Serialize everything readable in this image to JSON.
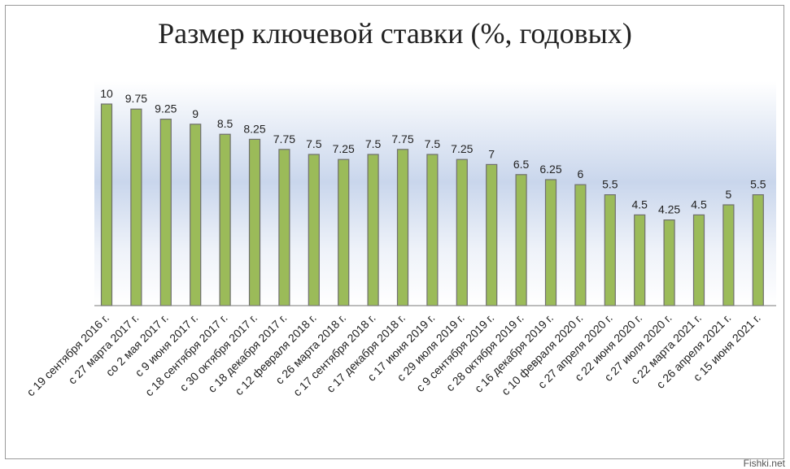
{
  "chart_data": {
    "type": "bar",
    "title": "Размер ключевой ставки (%, годовых)",
    "xlabel": "",
    "ylabel": "",
    "ylim": [
      0,
      10.5
    ],
    "grid": false,
    "legend": "none",
    "categories": [
      "с 19 сентября 2016 г.",
      "с 27 марта 2017 г.",
      "со 2 мая 2017 г.",
      "с 9 июня 2017 г.",
      "с 18 сентября 2017 г.",
      "с 30 октября 2017 г.",
      "с 18 декабря 2017 г.",
      "с 12 февраля 2018 г.",
      "с 26 марта 2018 г.",
      "с 17 сентября 2018 г.",
      "с 17 декабря 2018 г.",
      "с 17 июня 2019 г.",
      "с 29 июля 2019 г.",
      "с 9 сентября 2019 г.",
      "с 28 октября 2019 г.",
      "с 16 декабря 2019 г.",
      "с 10 февраля 2020 г.",
      "с 27 апреля 2020 г.",
      "с 22 июня 2020 г.",
      "с 27 июля 2020 г.",
      "с 22 марта 2021 г.",
      "с 26 апреля 2021 г.",
      "с 15 июня 2021 г."
    ],
    "values": [
      10,
      9.75,
      9.25,
      9,
      8.5,
      8.25,
      7.75,
      7.5,
      7.25,
      7.5,
      7.75,
      7.5,
      7.25,
      7,
      6.5,
      6.25,
      6,
      5.5,
      4.5,
      4.25,
      4.5,
      5,
      5.5
    ],
    "data_labels": [
      "10",
      "9.75",
      "9.25",
      "9",
      "8.5",
      "8.25",
      "7.75",
      "7.5",
      "7.25",
      "7.5",
      "7.75",
      "7.5",
      "7.25",
      "7",
      "6.5",
      "6.25",
      "6",
      "5.5",
      "4.5",
      "4.25",
      "4.5",
      "5",
      "5.5"
    ]
  },
  "colors": {
    "bar_fill": "#9bbb59",
    "bar_stroke": "#6f6f6f",
    "plot_bg_top": "#ffffff",
    "plot_bg_band": "#c5d3ea"
  },
  "watermark": "Fishki.net"
}
